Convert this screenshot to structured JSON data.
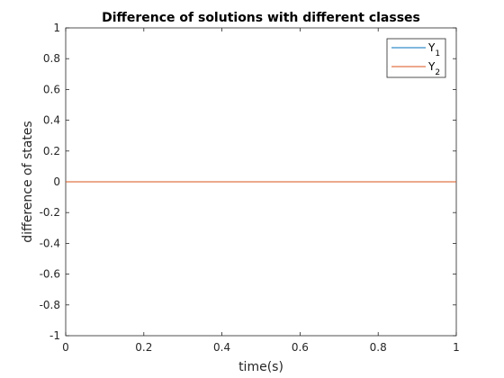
{
  "chart_data": {
    "type": "line",
    "title": "Difference of solutions with different classes",
    "xlabel": "time(s)",
    "ylabel": "difference of states",
    "xlim": [
      0,
      1
    ],
    "ylim": [
      -1,
      1
    ],
    "x_ticks": [
      0,
      0.2,
      0.4,
      0.6,
      0.8,
      1
    ],
    "x_tick_labels": [
      "0",
      "0.2",
      "0.4",
      "0.6",
      "0.8",
      "1"
    ],
    "y_ticks": [
      -1,
      -0.8,
      -0.6,
      -0.4,
      -0.2,
      0,
      0.2,
      0.4,
      0.6,
      0.8,
      1
    ],
    "y_tick_labels": [
      "-1",
      "-0.8",
      "-0.6",
      "-0.4",
      "-0.2",
      "0",
      "0.2",
      "0.4",
      "0.6",
      "0.8",
      "1"
    ],
    "grid": false,
    "legend_position": "top-right",
    "series": [
      {
        "name": "Y",
        "subscript": "1",
        "color": "#0072BD",
        "x": [
          0,
          1
        ],
        "y": [
          0,
          0
        ]
      },
      {
        "name": "Y",
        "subscript": "2",
        "color": "#D95319",
        "x": [
          0,
          1
        ],
        "y": [
          0,
          0
        ]
      }
    ]
  }
}
